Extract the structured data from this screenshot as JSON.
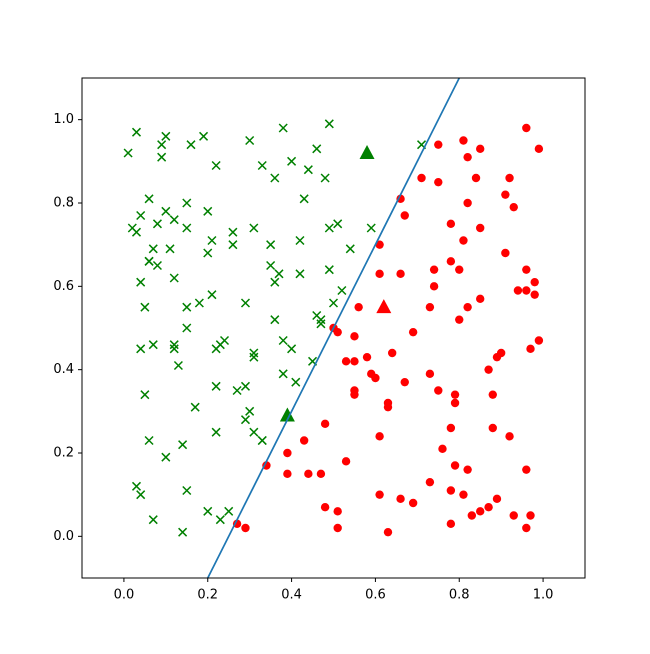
{
  "chart_data": {
    "type": "scatter",
    "xlim": [
      -0.1,
      1.1
    ],
    "ylim": [
      -0.1,
      1.1
    ],
    "xticks": [
      {
        "value": 0,
        "label": "0.0"
      },
      0.2,
      0.4,
      0.6,
      0.8,
      {
        "value": 1,
        "label": "1.0"
      }
    ],
    "yticks": [
      {
        "value": 0,
        "label": "0.0"
      },
      0.2,
      0.4,
      0.6,
      0.8,
      {
        "value": 1,
        "label": "1.0"
      }
    ],
    "grid": false,
    "series": [
      {
        "color": "#008000",
        "marker": "x",
        "x": [
          0.03,
          0.01,
          0.1,
          0.09,
          0.09,
          0.19,
          0.16,
          0.22,
          0.3,
          0.38,
          0.49,
          0.46,
          0.33,
          0.4,
          0.44,
          0.36,
          0.48,
          0.06,
          0.04,
          0.1,
          0.15,
          0.2,
          0.08,
          0.12,
          0.15,
          0.02,
          0.03,
          0.43,
          0.31,
          0.26,
          0.26,
          0.21,
          0.35,
          0.42,
          0.51,
          0.49,
          0.59,
          0.07,
          0.11,
          0.2,
          0.06,
          0.08,
          0.06,
          0.35,
          0.37,
          0.42,
          0.49,
          0.54,
          0.04,
          0.12,
          0.36,
          0.21,
          0.18,
          0.15,
          0.05,
          0.29,
          0.5,
          0.52,
          0.15,
          0.36,
          0.46,
          0.47,
          0.47,
          0.07,
          0.04,
          0.12,
          0.12,
          0.22,
          0.23,
          0.24,
          0.38,
          0.4,
          0.31,
          0.31,
          0.13,
          0.45,
          0.38,
          0.41,
          0.22,
          0.27,
          0.29,
          0.05,
          0.17,
          0.3,
          0.29,
          0.31,
          0.22,
          0.33,
          0.33,
          0.06,
          0.14,
          0.1,
          0.03,
          0.04,
          0.15,
          0.2,
          0.25,
          0.23,
          0.07,
          0.14,
          0.71
        ],
        "y": [
          0.97,
          0.92,
          0.96,
          0.94,
          0.91,
          0.96,
          0.94,
          0.89,
          0.95,
          0.98,
          0.99,
          0.93,
          0.89,
          0.9,
          0.88,
          0.86,
          0.86,
          0.81,
          0.77,
          0.78,
          0.8,
          0.78,
          0.75,
          0.76,
          0.74,
          0.74,
          0.73,
          0.81,
          0.74,
          0.73,
          0.7,
          0.71,
          0.7,
          0.71,
          0.75,
          0.74,
          0.74,
          0.69,
          0.69,
          0.68,
          0.66,
          0.65,
          0.66,
          0.65,
          0.63,
          0.63,
          0.64,
          0.69,
          0.61,
          0.62,
          0.61,
          0.58,
          0.56,
          0.55,
          0.55,
          0.56,
          0.56,
          0.59,
          0.5,
          0.52,
          0.53,
          0.52,
          0.51,
          0.46,
          0.45,
          0.46,
          0.45,
          0.45,
          0.46,
          0.47,
          0.47,
          0.45,
          0.43,
          0.44,
          0.41,
          0.42,
          0.39,
          0.37,
          0.36,
          0.35,
          0.36,
          0.34,
          0.31,
          0.3,
          0.28,
          0.25,
          0.25,
          0.23,
          0.23,
          0.23,
          0.22,
          0.19,
          0.12,
          0.1,
          0.11,
          0.06,
          0.06,
          0.04,
          0.04,
          0.01,
          0.94
        ]
      },
      {
        "color": "#ff0000",
        "marker": "o",
        "x": [
          0.96,
          0.99,
          0.75,
          0.81,
          0.82,
          0.85,
          0.92,
          0.71,
          0.75,
          0.84,
          0.91,
          0.93,
          0.66,
          0.82,
          0.67,
          0.78,
          0.85,
          0.81,
          0.61,
          0.91,
          0.78,
          0.61,
          0.66,
          0.74,
          0.8,
          0.96,
          0.98,
          0.74,
          0.94,
          0.96,
          0.98,
          0.85,
          0.82,
          0.56,
          0.73,
          0.8,
          0.5,
          0.51,
          0.55,
          0.69,
          0.99,
          0.97,
          0.9,
          0.89,
          0.58,
          0.64,
          0.53,
          0.55,
          0.87,
          0.59,
          0.6,
          0.73,
          0.67,
          0.75,
          0.55,
          0.55,
          0.79,
          0.79,
          0.88,
          0.63,
          0.63,
          0.48,
          0.78,
          0.88,
          0.61,
          0.92,
          0.43,
          0.76,
          0.39,
          0.34,
          0.53,
          0.79,
          0.96,
          0.47,
          0.82,
          0.44,
          0.39,
          0.73,
          0.78,
          0.61,
          0.81,
          0.89,
          0.66,
          0.69,
          0.87,
          0.85,
          0.48,
          0.51,
          0.93,
          0.97,
          0.83,
          0.27,
          0.29,
          0.51,
          0.78,
          0.96,
          0.63
        ],
        "y": [
          0.98,
          0.93,
          0.94,
          0.95,
          0.91,
          0.93,
          0.86,
          0.86,
          0.85,
          0.86,
          0.82,
          0.79,
          0.81,
          0.8,
          0.77,
          0.75,
          0.74,
          0.71,
          0.7,
          0.68,
          0.66,
          0.63,
          0.63,
          0.64,
          0.64,
          0.64,
          0.61,
          0.6,
          0.59,
          0.59,
          0.58,
          0.57,
          0.55,
          0.55,
          0.55,
          0.52,
          0.5,
          0.49,
          0.48,
          0.49,
          0.47,
          0.45,
          0.44,
          0.43,
          0.43,
          0.44,
          0.42,
          0.42,
          0.4,
          0.39,
          0.38,
          0.39,
          0.37,
          0.35,
          0.35,
          0.34,
          0.34,
          0.32,
          0.34,
          0.32,
          0.31,
          0.27,
          0.26,
          0.26,
          0.24,
          0.24,
          0.23,
          0.21,
          0.2,
          0.17,
          0.18,
          0.17,
          0.16,
          0.15,
          0.16,
          0.15,
          0.15,
          0.13,
          0.11,
          0.1,
          0.1,
          0.09,
          0.09,
          0.08,
          0.07,
          0.06,
          0.07,
          0.06,
          0.05,
          0.05,
          0.05,
          0.03,
          0.02,
          0.02,
          0.03,
          0.02,
          0.01
        ]
      },
      {
        "color": "#008000",
        "marker": "^",
        "x": [
          0.58,
          0.39
        ],
        "y": [
          0.92,
          0.29
        ]
      },
      {
        "color": "#ff0000",
        "marker": "^",
        "x": [
          0.62
        ],
        "y": [
          0.55
        ]
      },
      {
        "color": "#1f77b4",
        "marker": "line",
        "x": [
          0.2,
          0.8
        ],
        "y": [
          -0.1,
          1.1
        ]
      }
    ]
  }
}
